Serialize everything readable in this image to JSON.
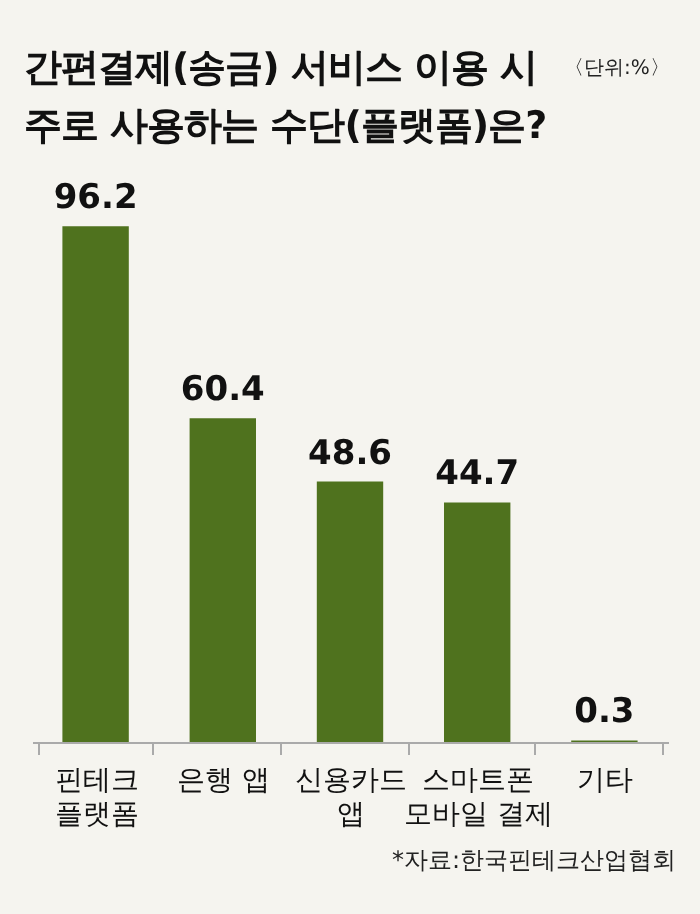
{
  "chart_data": {
    "type": "bar",
    "title": "간편결제(송금) 서비스 이용 시 주로 사용하는 수단(플랫폼)은?",
    "subtitle": "〈단위:%〉",
    "categories": [
      "핀테크 플랫폼",
      "은행 앱",
      "신용카드 앱",
      "스마트폰 모바일 결제",
      "기타"
    ],
    "values": [
      96.2,
      60.4,
      48.6,
      44.7,
      0.3
    ],
    "color": "#4f721e",
    "data_labels": true,
    "grid": false,
    "annotations": [
      "*자료:한국핀테크산업협회"
    ]
  }
}
